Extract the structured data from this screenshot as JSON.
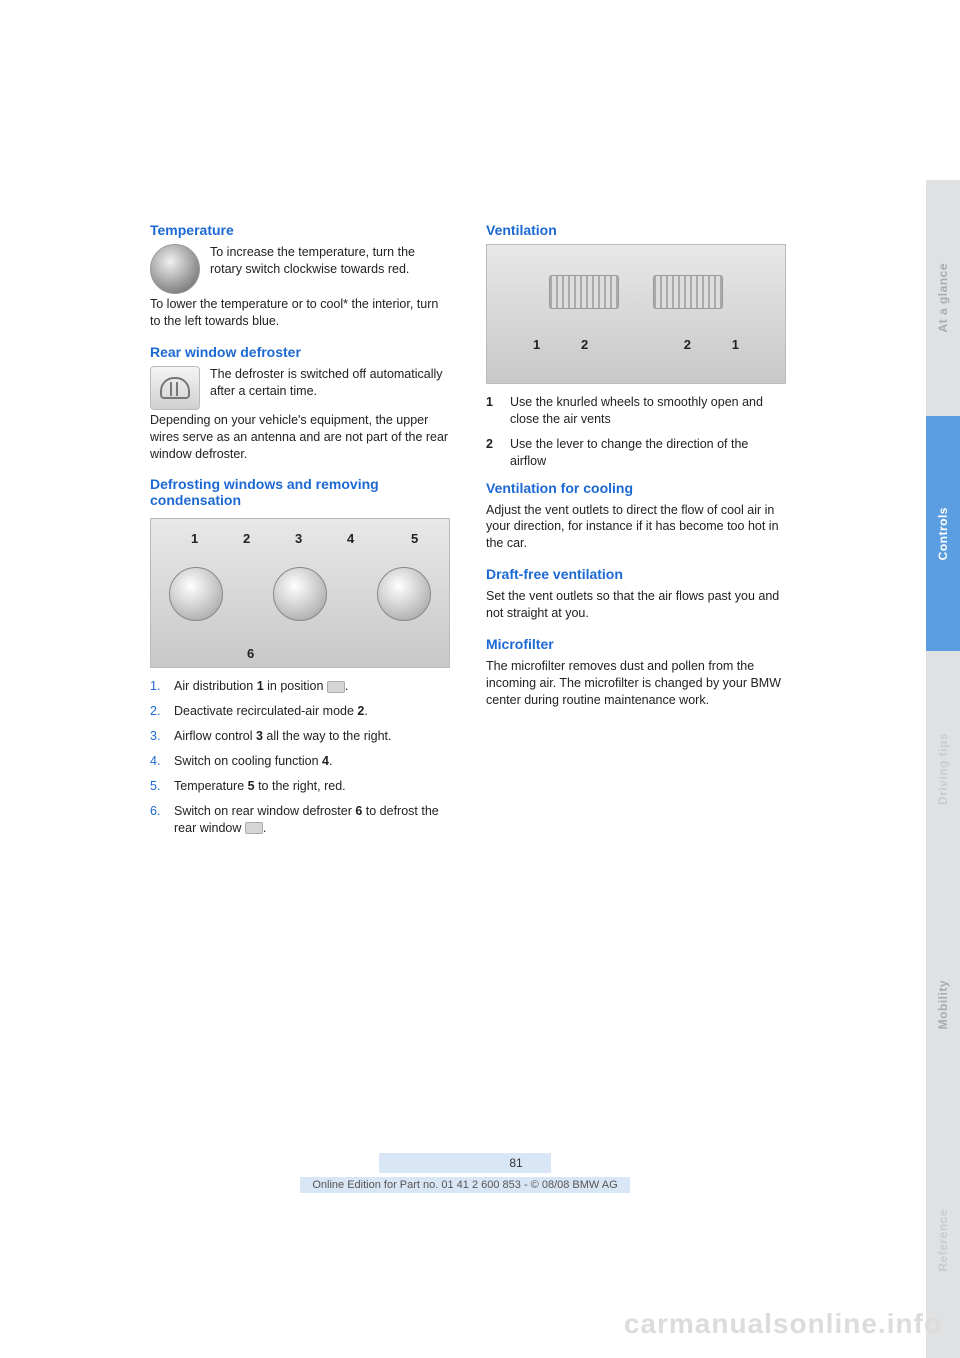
{
  "tabs": {
    "items": [
      "At a glance",
      "Controls",
      "Driving tips",
      "Mobility",
      "Reference"
    ],
    "bg_colors": [
      "#dfe1e3",
      "#5a9de0",
      "#dfe1e3",
      "#dfe1e3",
      "#dfe1e3"
    ],
    "text_colors": [
      "#a9abad",
      "#ffffff",
      "#c9cbcd",
      "#a9abad",
      "#c9cbcd"
    ]
  },
  "left": {
    "h1": "Temperature",
    "p1a": "To increase the temperature, turn the rotary switch clockwise towards red.",
    "p1b": "To lower the temperature or to cool* the interior, turn to the left towards blue.",
    "h2": "Rear window defroster",
    "p2a": "The defroster is switched off automatically after a certain time.",
    "p2b": "Depending on your vehicle's equipment, the upper wires serve as an antenna and are not part of the rear window defroster.",
    "h3": "Defrosting windows and removing condensation",
    "fig1_labels": [
      "1",
      "2",
      "3",
      "4",
      "5",
      "6"
    ],
    "list": [
      {
        "n": "1.",
        "t_a": "Air distribution ",
        "b": "1",
        "t_b": " in position ",
        "icon": true,
        "t_c": "."
      },
      {
        "n": "2.",
        "t_a": "Deactivate recirculated-air mode ",
        "b": "2",
        "t_b": ".",
        "icon": false,
        "t_c": ""
      },
      {
        "n": "3.",
        "t_a": "Airflow control ",
        "b": "3",
        "t_b": " all the way to the right.",
        "icon": false,
        "t_c": ""
      },
      {
        "n": "4.",
        "t_a": "Switch on cooling function ",
        "b": "4",
        "t_b": ".",
        "icon": false,
        "t_c": ""
      },
      {
        "n": "5.",
        "t_a": "Temperature ",
        "b": "5",
        "t_b": " to the right, red.",
        "icon": false,
        "t_c": ""
      },
      {
        "n": "6.",
        "t_a": "Switch on rear window defroster ",
        "b": "6",
        "t_b": " to defrost the rear window ",
        "icon": true,
        "t_c": "."
      }
    ]
  },
  "right": {
    "h1": "Ventilation",
    "fig2_labels": [
      "1",
      "2",
      "2",
      "1"
    ],
    "defs": [
      {
        "n": "1",
        "t": "Use the knurled wheels to smoothly open and close the air vents"
      },
      {
        "n": "2",
        "t": "Use the lever to change the direction of the airflow"
      }
    ],
    "h2": "Ventilation for cooling",
    "p2": "Adjust the vent outlets to direct the flow of cool air in your direction, for instance if it has become too hot in the car.",
    "h3": "Draft-free ventilation",
    "p3": "Set the vent outlets so that the air flows past you and not straight at you.",
    "h4": "Microfilter",
    "p4": "The microfilter removes dust and pollen from the incoming air. The microfilter is changed by your BMW center during routine maintenance work."
  },
  "footer": {
    "page": "81",
    "line": "Online Edition for Part no. 01 41 2 600 853 - © 08/08 BMW AG"
  },
  "watermark": "carmanualsonline.info",
  "colors": {
    "heading": "#1c69d4",
    "body": "#222222",
    "tab_active_bg": "#5a9de0",
    "tab_inactive_bg": "#dfe1e3"
  }
}
